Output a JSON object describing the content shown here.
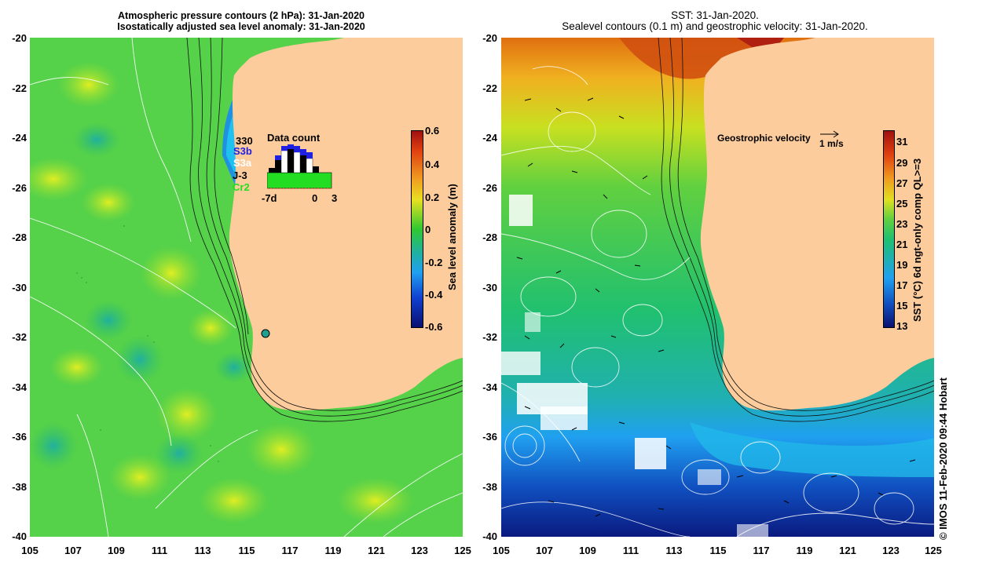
{
  "left_panel": {
    "title_line1": "Atmospheric pressure contours (2 hPa): 31-Jan-2020",
    "title_line2": "Isostatically adjusted sea level anomaly: 31-Jan-2020",
    "y_ticks": [
      "-20",
      "-22",
      "-24",
      "-26",
      "-28",
      "-30",
      "-32",
      "-34",
      "-36",
      "-38",
      "-40"
    ],
    "x_ticks": [
      "105",
      "107",
      "109",
      "111",
      "113",
      "115",
      "117",
      "119",
      "121",
      "123",
      "125"
    ],
    "colorbar": {
      "title": "Sea level anomaly (m)",
      "labels": [
        "0.6",
        "0.4",
        "0.2",
        "0",
        "-0.2",
        "-0.4",
        "-0.6"
      ],
      "min": -0.6,
      "max": 0.6
    },
    "data_count": {
      "title": "Data count",
      "series_labels": [
        "330",
        "S3b",
        "S3a",
        "J-3",
        "Cr2"
      ],
      "x_labels": [
        "-7d",
        "0",
        "3"
      ],
      "series_colors": {
        "330": "#000000",
        "S3b": "#2020e0",
        "S3a": "#ffffff",
        "J-3": "#000000",
        "Cr2": "#22dd22"
      }
    }
  },
  "right_panel": {
    "title_line1": "SST: 31-Jan-2020.",
    "title_line2": "Sealevel contours (0.1 m) and geostrophic velocity: 31-Jan-2020.",
    "y_ticks": [
      "-20",
      "-22",
      "-24",
      "-26",
      "-28",
      "-30",
      "-32",
      "-34",
      "-36",
      "-38",
      "-40"
    ],
    "x_ticks": [
      "105",
      "107",
      "109",
      "111",
      "113",
      "115",
      "117",
      "119",
      "121",
      "123",
      "125"
    ],
    "colorbar": {
      "title": "SST (°C) 6d ngt-only comp QL>=3",
      "labels": [
        "31",
        "29",
        "27",
        "25",
        "23",
        "21",
        "19",
        "17",
        "15",
        "13"
      ],
      "min": 13,
      "max": 32
    },
    "velocity_legend": {
      "label": "Geostrophic velocity",
      "scale": "1 m/s"
    }
  },
  "footer": "© IMOS 11-Feb-2020 09:44 Hobart",
  "colors": {
    "land": "#fccc9c",
    "sla_mid": "#33cc33",
    "sst_warm": "#e06010",
    "sst_cold": "#102090"
  }
}
